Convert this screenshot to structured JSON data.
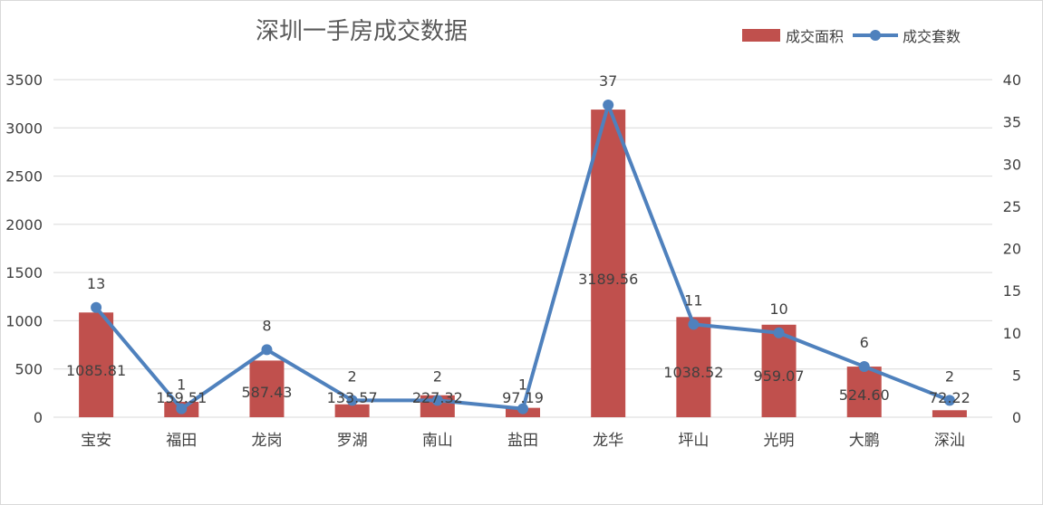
{
  "chart_data": {
    "type": "bar",
    "title": "深圳一手房成交数据",
    "categories": [
      "宝安",
      "福田",
      "龙岗",
      "罗湖",
      "南山",
      "盐田",
      "龙华",
      "坪山",
      "光明",
      "大鹏",
      "深汕"
    ],
    "series": [
      {
        "name": "成交面积",
        "type": "bar",
        "axis": "left",
        "color": "#c0504d",
        "values": [
          1085.81,
          159.51,
          587.43,
          133.57,
          227.32,
          97.19,
          3189.56,
          1038.52,
          959.07,
          524.6,
          72.22
        ],
        "labels": [
          "1085.81",
          "159.51",
          "587.43",
          "133.57",
          "227.32",
          "97.19",
          "3189.56",
          "1038.52",
          "959.07",
          "524.60",
          "72.22"
        ]
      },
      {
        "name": "成交套数",
        "type": "line",
        "axis": "right",
        "color": "#4f81bd",
        "values": [
          13,
          1,
          8,
          2,
          2,
          1,
          37,
          11,
          10,
          6,
          2
        ],
        "labels": [
          "13",
          "1",
          "8",
          "2",
          "2",
          "1",
          "37",
          "11",
          "10",
          "6",
          "2"
        ]
      }
    ],
    "left_axis": {
      "ylim": [
        0,
        3500
      ],
      "ticks": [
        "0",
        "500",
        "1000",
        "1500",
        "2000",
        "2500",
        "3000",
        "3500"
      ]
    },
    "right_axis": {
      "ylim": [
        0,
        40
      ],
      "ticks": [
        "0",
        "5",
        "10",
        "15",
        "20",
        "25",
        "30",
        "35",
        "40"
      ]
    },
    "grid": true,
    "legend_position": "top-right"
  }
}
